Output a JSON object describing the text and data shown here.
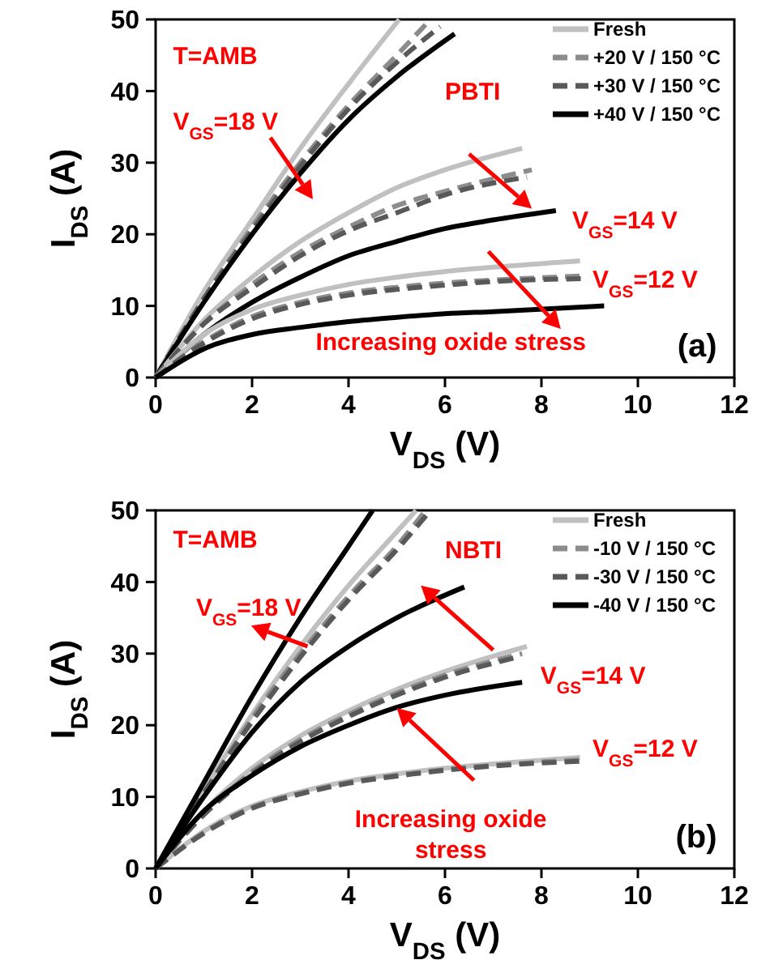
{
  "chart_data": [
    {
      "type": "line",
      "xlabel": "V$_{DS}$ (V)",
      "ylabel": "I$_{DS}$ (A)",
      "xlim": [
        0,
        12
      ],
      "ylim": [
        0,
        50
      ],
      "xticks": [
        0,
        2,
        4,
        6,
        8,
        10,
        12
      ],
      "yticks": [
        0,
        10,
        20,
        30,
        40,
        50
      ],
      "grid": false,
      "legend": "top right",
      "marker": "none",
      "series": [
        {
          "name": "Fresh",
          "color": "#c0c0c0",
          "line_style": "solid",
          "x": [
            0,
            1,
            2,
            3,
            4,
            5.05
          ],
          "values": [
            0,
            12,
            22,
            32,
            41,
            50
          ]
        },
        {
          "name": "+20 V / 150 °C",
          "color": "#8c8c8c",
          "line_style": "dashed",
          "x": [
            0,
            1,
            2,
            3,
            4,
            5,
            5.7
          ],
          "values": [
            0,
            11,
            21,
            30,
            38,
            45,
            50
          ]
        },
        {
          "name": "+30 V / 150 °C",
          "color": "#595959",
          "line_style": "dashed",
          "x": [
            0,
            1,
            2,
            3,
            4,
            5,
            5.9
          ],
          "values": [
            0,
            11,
            20.5,
            29.5,
            37.5,
            44,
            49
          ]
        },
        {
          "name": "+40 V / 150 °C",
          "color": "#000000",
          "line_style": "solid",
          "x": [
            0,
            1,
            2,
            3,
            4,
            5,
            6.2
          ],
          "values": [
            0,
            10.5,
            20,
            28.5,
            36,
            42,
            48
          ]
        },
        {
          "color": "#c0c0c0",
          "line_style": "solid",
          "x": [
            0,
            1,
            2,
            3,
            4,
            5,
            6,
            7.6
          ],
          "values": [
            0,
            8,
            14,
            19,
            23,
            26.5,
            29,
            32
          ]
        },
        {
          "color": "#8c8c8c",
          "line_style": "dashed",
          "x": [
            0,
            1,
            2,
            3,
            4,
            5,
            6,
            7.8
          ],
          "values": [
            0,
            7.5,
            13,
            17.5,
            21,
            24,
            26,
            29
          ]
        },
        {
          "color": "#595959",
          "line_style": "dashed",
          "x": [
            0,
            1,
            2,
            3,
            4,
            5,
            6,
            7.7
          ],
          "values": [
            0,
            7.5,
            12.5,
            17,
            20.5,
            23,
            25.5,
            28
          ]
        },
        {
          "color": "#000000",
          "line_style": "solid",
          "x": [
            0,
            1,
            2,
            3,
            4,
            5,
            6,
            7,
            8.3
          ],
          "values": [
            0,
            6,
            10.5,
            14,
            17,
            19,
            20.8,
            22,
            23.3
          ]
        },
        {
          "color": "#c0c0c0",
          "line_style": "solid",
          "x": [
            0,
            1,
            2,
            3,
            4,
            5,
            6,
            7,
            8.8
          ],
          "values": [
            0,
            6,
            9.5,
            11.5,
            13,
            14,
            14.8,
            15.4,
            16.3
          ]
        },
        {
          "color": "#8c8c8c",
          "line_style": "dashed",
          "x": [
            0,
            1,
            2,
            3,
            4,
            5,
            6,
            7,
            8.9
          ],
          "values": [
            0,
            5,
            8.5,
            10.5,
            11.8,
            12.6,
            13.2,
            13.6,
            14.2
          ]
        },
        {
          "color": "#595959",
          "line_style": "dashed",
          "x": [
            0,
            1,
            2,
            3,
            4,
            5,
            6,
            7,
            8.9
          ],
          "values": [
            0,
            4.8,
            8.2,
            10.2,
            11.5,
            12.3,
            12.9,
            13.4,
            13.8
          ]
        },
        {
          "color": "#000000",
          "line_style": "solid",
          "x": [
            0,
            1,
            2,
            3,
            4,
            5,
            6,
            7,
            9.3
          ],
          "values": [
            0,
            4,
            6,
            7,
            7.8,
            8.4,
            8.9,
            9.2,
            10
          ]
        }
      ],
      "annotations": [
        "T=AMB",
        "PBTI",
        "V$_{GS}$=18 V",
        "V$_{GS}$=14 V",
        "V$_{GS}$=12 V",
        "Increasing oxide stress",
        "(a)"
      ]
    },
    {
      "type": "line",
      "xlabel": "V$_{DS}$ (V)",
      "ylabel": "I$_{DS}$ (A)",
      "xlim": [
        0,
        12
      ],
      "ylim": [
        0,
        50
      ],
      "xticks": [
        0,
        2,
        4,
        6,
        8,
        10,
        12
      ],
      "yticks": [
        0,
        10,
        20,
        30,
        40,
        50
      ],
      "grid": false,
      "legend": "top right",
      "marker": "none",
      "series": [
        {
          "name": "Fresh",
          "color": "#c0c0c0",
          "line_style": "solid",
          "x": [
            0,
            1,
            2,
            3,
            4,
            5,
            5.4
          ],
          "values": [
            0,
            11,
            21.5,
            31,
            39.5,
            47,
            50
          ]
        },
        {
          "name": "-10 V / 150 °C",
          "color": "#8c8c8c",
          "line_style": "dashed",
          "x": [
            0,
            1,
            2,
            3,
            4,
            5,
            5.6
          ],
          "values": [
            0,
            10.5,
            21,
            30,
            38,
            45,
            50
          ]
        },
        {
          "name": "-30 V / 150 °C",
          "color": "#595959",
          "line_style": "dashed",
          "x": [
            0,
            1,
            2,
            3,
            4,
            5,
            5.7
          ],
          "values": [
            0,
            10.5,
            20.5,
            29.5,
            37.5,
            44.5,
            50
          ]
        },
        {
          "name": "-40 V / 150 °C",
          "color": "#000000",
          "line_style": "solid",
          "x": [
            0,
            1,
            2,
            3,
            4,
            4.5
          ],
          "values": [
            0,
            12,
            24,
            35,
            45,
            50
          ]
        },
        {
          "color": "#c0c0c0",
          "line_style": "solid",
          "x": [
            0,
            1,
            2,
            3,
            4,
            5,
            6,
            7.7
          ],
          "values": [
            0,
            8,
            14,
            18.5,
            22,
            25,
            27.5,
            31
          ]
        },
        {
          "color": "#8c8c8c",
          "line_style": "dashed",
          "x": [
            0,
            1,
            2,
            3,
            4,
            5,
            6,
            7.6
          ],
          "values": [
            0,
            7.5,
            13.5,
            18,
            21.5,
            24.5,
            27,
            30
          ]
        },
        {
          "color": "#595959",
          "line_style": "dashed",
          "x": [
            0,
            1,
            2,
            3,
            4,
            5,
            6,
            7.5
          ],
          "values": [
            0,
            7.5,
            13.2,
            17.7,
            21.2,
            24.2,
            26.7,
            29.5
          ]
        },
        {
          "color": "#000000",
          "line_style": "solid",
          "x": [
            0,
            1,
            2,
            3,
            4,
            5,
            6.4
          ],
          "values": [
            0,
            10,
            19,
            26,
            31,
            35,
            39.3
          ]
        },
        {
          "color": "#c0c0c0",
          "line_style": "solid",
          "x": [
            0,
            1,
            2,
            3,
            4,
            5,
            6,
            7,
            8.8
          ],
          "values": [
            0,
            5.2,
            8.7,
            10.7,
            12.2,
            13.2,
            14,
            14.6,
            15.5
          ]
        },
        {
          "color": "#8c8c8c",
          "line_style": "dashed",
          "x": [
            0,
            1,
            2,
            3,
            4,
            5,
            6,
            7,
            8.9
          ],
          "values": [
            0,
            5,
            8.5,
            10.5,
            12,
            13,
            13.8,
            14.4,
            15.2
          ]
        },
        {
          "color": "#595959",
          "line_style": "dashed",
          "x": [
            0,
            1,
            2,
            3,
            4,
            5,
            6,
            7,
            8.9
          ],
          "values": [
            0,
            4.9,
            8.4,
            10.4,
            11.9,
            12.9,
            13.7,
            14.3,
            15
          ]
        },
        {
          "color": "#000000",
          "line_style": "solid",
          "x": [
            0,
            1,
            2,
            3,
            4,
            5,
            6,
            7.6
          ],
          "values": [
            0,
            8,
            13,
            17,
            20,
            22.5,
            24.2,
            26
          ]
        }
      ],
      "annotations": [
        "T=AMB",
        "NBTI",
        "V$_{GS}$=18 V",
        "V$_{GS}$=14 V",
        "V$_{GS}$=12 V",
        "Increasing oxide stress",
        "(b)"
      ]
    }
  ]
}
